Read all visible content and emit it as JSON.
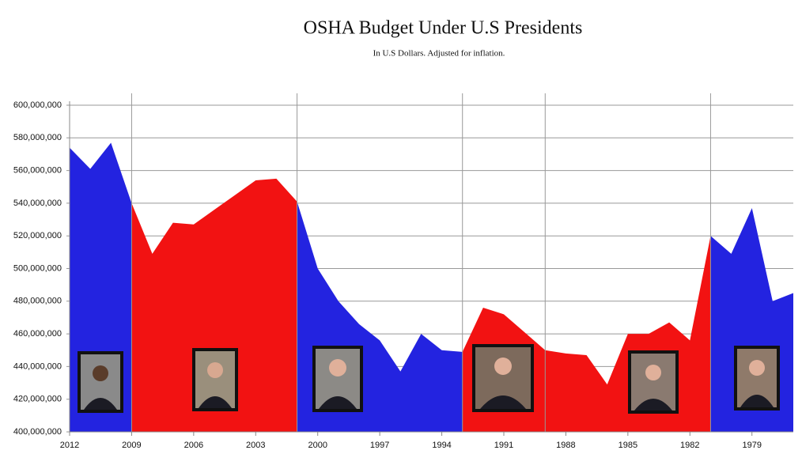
{
  "chart_data": {
    "type": "area",
    "title": "OSHA Budget Under U.S Presidents",
    "subtitle": "In U.S Dollars. Adjusted for inflation.",
    "x": [
      2012,
      2011,
      2010,
      2009,
      2008,
      2007,
      2006,
      2005,
      2004,
      2003,
      2002,
      2001,
      2000,
      1999,
      1998,
      1997,
      1996,
      1995,
      1994,
      1993,
      1992,
      1991,
      1990,
      1989,
      1988,
      1987,
      1986,
      1985,
      1984,
      1983,
      1982,
      1981,
      1980,
      1979,
      1978,
      1977
    ],
    "xlim": [
      2012,
      1977
    ],
    "xticks": [
      2012,
      2009,
      2006,
      2003,
      2000,
      1997,
      1994,
      1991,
      1988,
      1985,
      1982,
      1979
    ],
    "ylim": [
      400000000,
      600000000
    ],
    "yticks": [
      {
        "value": 400000000,
        "label": "400,000,000"
      },
      {
        "value": 420000000,
        "label": "420,000,000"
      },
      {
        "value": 440000000,
        "label": "440,000,000"
      },
      {
        "value": 460000000,
        "label": "460,000,000"
      },
      {
        "value": 480000000,
        "label": "480,000,000"
      },
      {
        "value": 500000000,
        "label": "500,000,000"
      },
      {
        "value": 520000000,
        "label": "520,000,000"
      },
      {
        "value": 540000000,
        "label": "540,000,000"
      },
      {
        "value": 560000000,
        "label": "560,000,000"
      },
      {
        "value": 580000000,
        "label": "580,000,000"
      },
      {
        "value": 600000000,
        "label": "600,000,000"
      }
    ],
    "grid": true,
    "dividers": [
      2009,
      2001,
      1993,
      1989,
      1981
    ],
    "series": [
      {
        "color": "#2323e0",
        "values": [
          574000000,
          561000000,
          577000000,
          540000000,
          null,
          null,
          null,
          null,
          null,
          null,
          null,
          null,
          null,
          null,
          null,
          null,
          null,
          null,
          null,
          null,
          null,
          null,
          null,
          null,
          null,
          null,
          null,
          null,
          null,
          null,
          null,
          null,
          null,
          null,
          null,
          null
        ]
      },
      {
        "color": "#f21212",
        "values": [
          null,
          null,
          null,
          540000000,
          509000000,
          528000000,
          527000000,
          536000000,
          545000000,
          554000000,
          555000000,
          541000000,
          null,
          null,
          null,
          null,
          null,
          null,
          null,
          null,
          null,
          null,
          null,
          null,
          null,
          null,
          null,
          null,
          null,
          null,
          null,
          null,
          null,
          null,
          null,
          null
        ]
      },
      {
        "color": "#2323e0",
        "values": [
          null,
          null,
          null,
          null,
          null,
          null,
          null,
          null,
          null,
          null,
          null,
          541000000,
          500000000,
          480000000,
          466000000,
          456000000,
          437000000,
          460000000,
          450000000,
          449000000,
          null,
          null,
          null,
          null,
          null,
          null,
          null,
          null,
          null,
          null,
          null,
          null,
          null,
          null,
          null,
          null
        ]
      },
      {
        "color": "#f21212",
        "values": [
          null,
          null,
          null,
          null,
          null,
          null,
          null,
          null,
          null,
          null,
          null,
          null,
          null,
          null,
          null,
          null,
          null,
          null,
          null,
          449000000,
          476000000,
          472000000,
          461000000,
          450000000,
          448000000,
          447000000,
          429000000,
          460000000,
          460000000,
          467000000,
          456000000,
          520000000,
          null,
          null,
          null,
          null
        ]
      },
      {
        "color": "#2323e0",
        "values": [
          null,
          null,
          null,
          null,
          null,
          null,
          null,
          null,
          null,
          null,
          null,
          null,
          null,
          null,
          null,
          null,
          null,
          null,
          null,
          null,
          null,
          null,
          null,
          null,
          null,
          null,
          null,
          null,
          null,
          null,
          null,
          520000000,
          509000000,
          537000000,
          480000000,
          485000000
        ]
      }
    ]
  }
}
